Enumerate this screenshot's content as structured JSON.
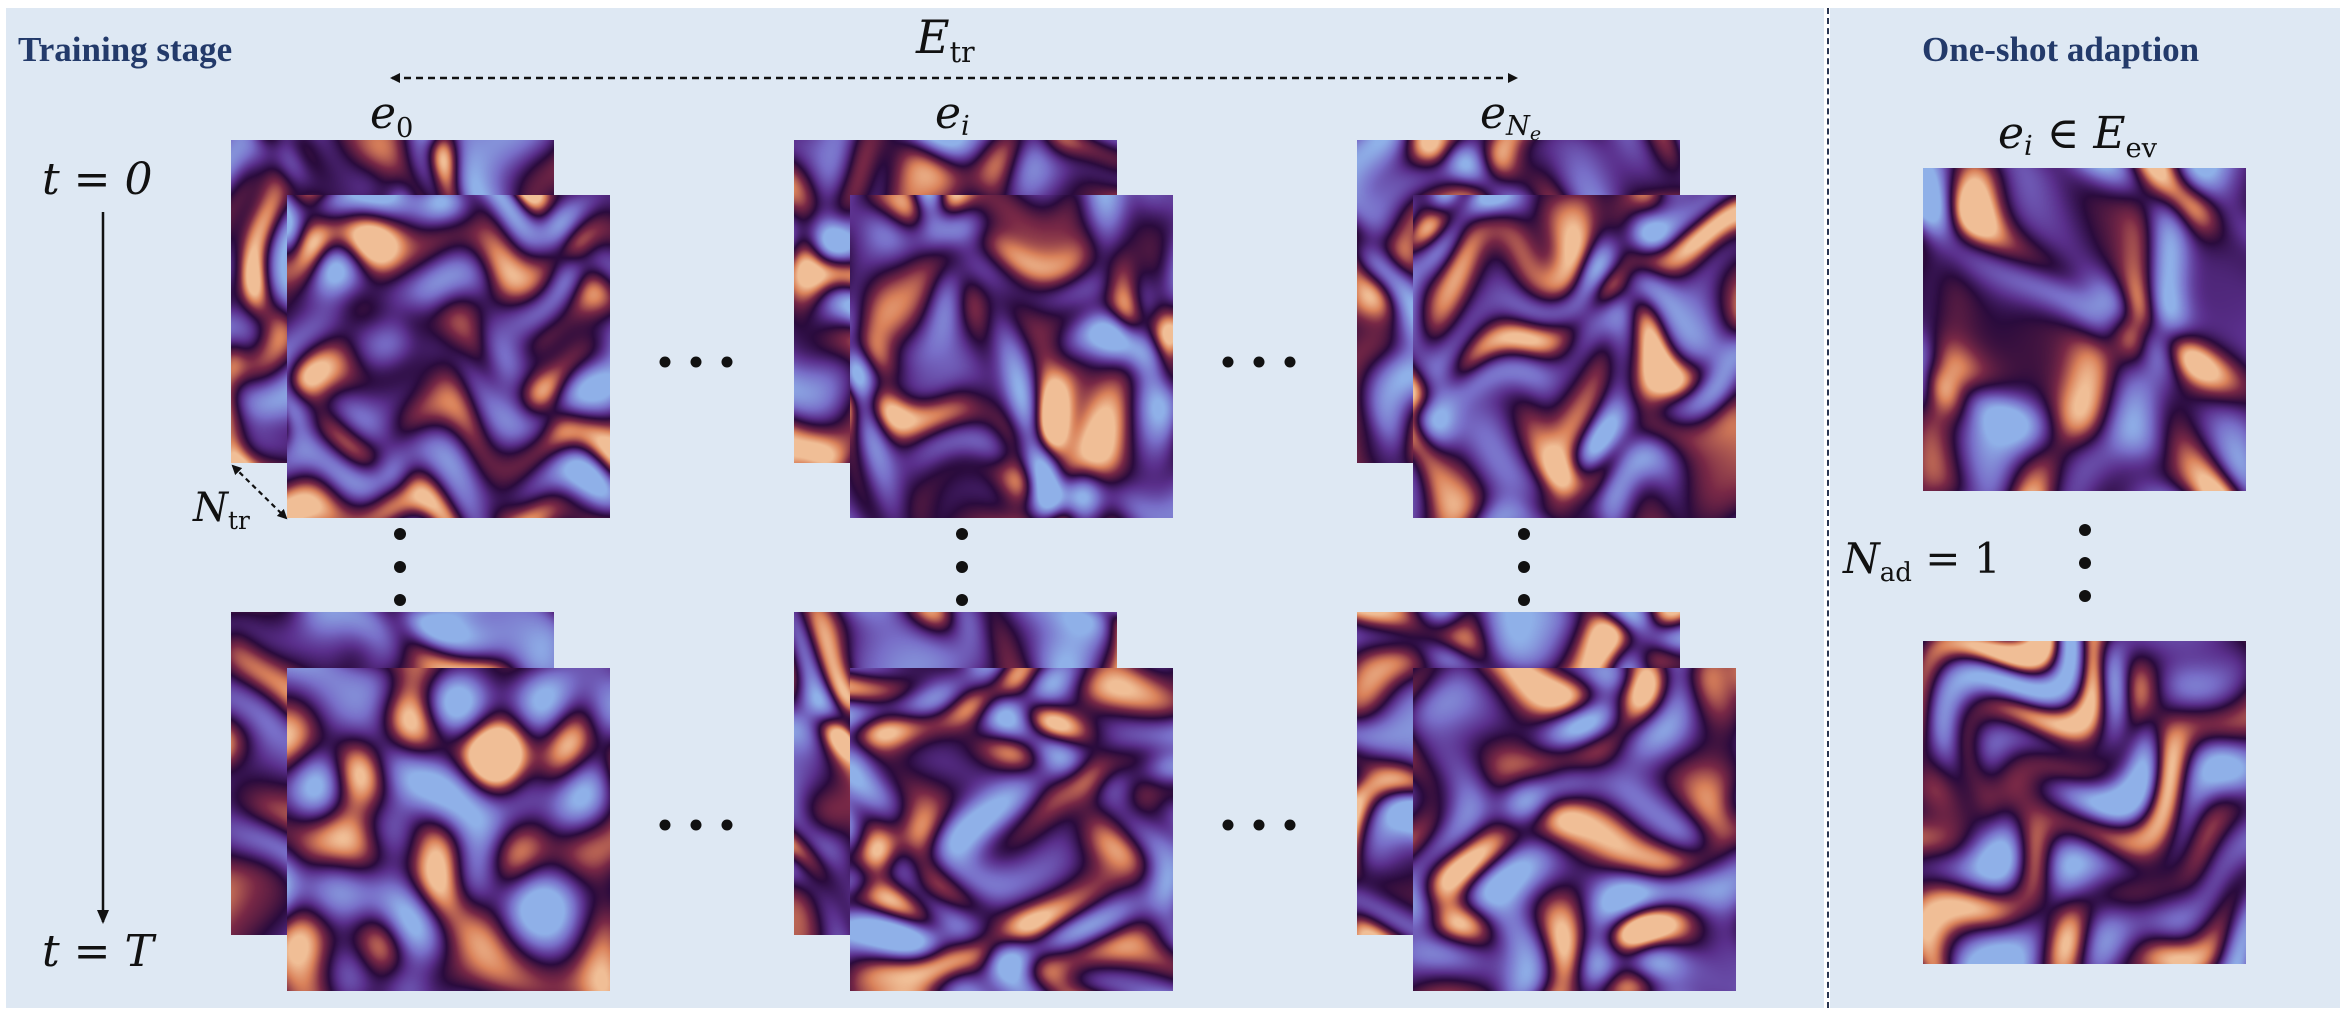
{
  "headings": {
    "training": "Training stage",
    "adaption": "One-shot adaption"
  },
  "labels": {
    "e_tr_set": "E",
    "e_tr_sub": "tr",
    "e0_base": "e",
    "e0_sub": "0",
    "ei_base": "e",
    "ei_sub": "i",
    "eNe_base": "e",
    "eNe_sub": "N",
    "eNe_subsub": "e",
    "t0": "t = 0",
    "tT": "t = T",
    "ntr_base": "N",
    "ntr_sub": "tr",
    "eval_ei": "e",
    "eval_i": "i",
    "eval_in": " ∈ ",
    "eval_set": "E",
    "eval_sub": "ev",
    "nad_base": "N",
    "nad_sub": "ad",
    "nad_eq": " = 1"
  },
  "colors": {
    "panel_bg": "#dee8f3",
    "heading": "#233a6a",
    "field_dark": "#2a0b3d",
    "field_purple": "#5a2f8c",
    "field_blue": "#8fb0e8",
    "field_orange": "#d9815a"
  }
}
